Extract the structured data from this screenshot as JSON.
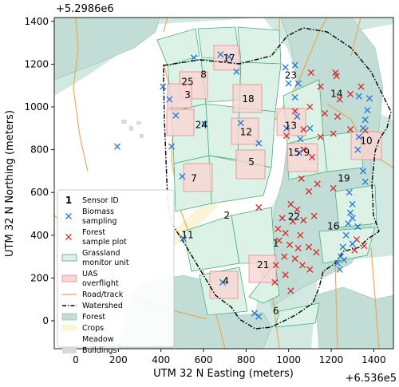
{
  "figure": {
    "offset_top": "+5.2986e6",
    "offset_right": "+6.536e5",
    "xlabel": "UTM 32 N Easting (meters)",
    "ylabel": "UTM 32 N Northing (meters)"
  },
  "axes": {
    "x_ticks": [
      0,
      200,
      400,
      600,
      800,
      1000,
      1200,
      1400
    ],
    "y_ticks": [
      0,
      200,
      400,
      600,
      800,
      1000,
      1200,
      1400
    ],
    "xlim": [
      -80,
      1480
    ],
    "ylim": [
      -90,
      1440
    ]
  },
  "colors": {
    "forest": "#c2ddd5",
    "forest_edge": "#94c3b4",
    "meadow": "#ffffff",
    "crops": "#fbf5d7",
    "buildings": "#d9d9d9",
    "background": "#d2e9e1",
    "grassland_fill": "#ddf2e6",
    "grassland_edge": "#49b07a",
    "uas_fill": "#f9d5d5",
    "uas_edge": "#e88a8a",
    "road": "#f0a24a",
    "watershed": "#000000",
    "biomass": "#1f77d8",
    "forest_plot": "#d62728"
  },
  "legend": {
    "sensor_symbol": "1",
    "items": [
      {
        "key": "sensor",
        "label": "Sensor ID"
      },
      {
        "key": "biomass",
        "label": "Biomass\nsampling"
      },
      {
        "key": "forest_plot",
        "label": "Forest\nsample plot"
      },
      {
        "key": "grassland",
        "label": "Grassland\nmonitor unit"
      },
      {
        "key": "uas",
        "label": "UAS\noverflight"
      },
      {
        "key": "road",
        "label": "Road/track"
      },
      {
        "key": "watershed",
        "label": "Watershed"
      },
      {
        "key": "forest",
        "label": "Forest"
      },
      {
        "key": "crops",
        "label": "Crops"
      },
      {
        "key": "meadow",
        "label": "Meadow"
      },
      {
        "key": "buildings",
        "label": "Buildings"
      }
    ]
  },
  "sensors": [
    {
      "id": "1",
      "x": 940,
      "y": 360
    },
    {
      "id": "2",
      "x": 710,
      "y": 490
    },
    {
      "id": "3",
      "x": 525,
      "y": 1055
    },
    {
      "id": "4",
      "x": 705,
      "y": 185
    },
    {
      "id": "5",
      "x": 825,
      "y": 740
    },
    {
      "id": "6",
      "x": 940,
      "y": 45
    },
    {
      "id": "7",
      "x": 555,
      "y": 665
    },
    {
      "id": "8",
      "x": 600,
      "y": 1150
    },
    {
      "id": "9",
      "x": 1085,
      "y": 785
    },
    {
      "id": "10",
      "x": 1365,
      "y": 840
    },
    {
      "id": "11",
      "x": 525,
      "y": 400
    },
    {
      "id": "12",
      "x": 800,
      "y": 880
    },
    {
      "id": "13",
      "x": 1010,
      "y": 910
    },
    {
      "id": "14",
      "x": 1225,
      "y": 1060
    },
    {
      "id": "15",
      "x": 1025,
      "y": 785
    },
    {
      "id": "16",
      "x": 1210,
      "y": 440
    },
    {
      "id": "17",
      "x": 720,
      "y": 1225
    },
    {
      "id": "18",
      "x": 810,
      "y": 1035
    },
    {
      "id": "19",
      "x": 1260,
      "y": 665
    },
    {
      "id": "21",
      "x": 880,
      "y": 260
    },
    {
      "id": "22",
      "x": 1025,
      "y": 485
    },
    {
      "id": "23",
      "x": 1010,
      "y": 1145
    },
    {
      "id": "24",
      "x": 590,
      "y": 915
    },
    {
      "id": "25",
      "x": 525,
      "y": 1115
    }
  ],
  "biomass_points": [
    [
      195,
      815
    ],
    [
      410,
      1095
    ],
    [
      440,
      1035
    ],
    [
      470,
      960
    ],
    [
      450,
      815
    ],
    [
      500,
      675
    ],
    [
      505,
      385
    ],
    [
      555,
      1230
    ],
    [
      680,
      1245
    ],
    [
      720,
      1235
    ],
    [
      755,
      1165
    ],
    [
      775,
      925
    ],
    [
      860,
      830
    ],
    [
      605,
      920
    ],
    [
      690,
      180
    ],
    [
      840,
      35
    ],
    [
      860,
      20
    ],
    [
      985,
      1185
    ],
    [
      1030,
      1195
    ],
    [
      1000,
      1110
    ],
    [
      1045,
      1110
    ],
    [
      1030,
      1045
    ],
    [
      1040,
      955
    ],
    [
      990,
      900
    ],
    [
      1055,
      850
    ],
    [
      1100,
      900
    ],
    [
      1050,
      785
    ],
    [
      1330,
      1050
    ],
    [
      1380,
      1040
    ],
    [
      1370,
      985
    ],
    [
      1360,
      940
    ],
    [
      1350,
      900
    ],
    [
      1330,
      860
    ],
    [
      1325,
      800
    ],
    [
      1350,
      700
    ],
    [
      1360,
      650
    ],
    [
      1285,
      600
    ],
    [
      1300,
      545
    ],
    [
      1290,
      505
    ],
    [
      1300,
      480
    ],
    [
      1280,
      455
    ],
    [
      1270,
      400
    ],
    [
      1255,
      345
    ],
    [
      1245,
      300
    ],
    [
      1230,
      270
    ],
    [
      1260,
      285
    ],
    [
      1240,
      240
    ],
    [
      1325,
      440
    ],
    [
      1300,
      360
    ]
  ],
  "forest_points": [
    [
      1105,
      1160
    ],
    [
      1150,
      1095
    ],
    [
      1220,
      1160
    ],
    [
      1225,
      1145
    ],
    [
      1240,
      1035
    ],
    [
      1290,
      1060
    ],
    [
      1340,
      1095
    ],
    [
      1100,
      1000
    ],
    [
      1170,
      970
    ],
    [
      1230,
      955
    ],
    [
      1030,
      980
    ],
    [
      990,
      865
    ],
    [
      1070,
      895
    ],
    [
      1150,
      860
    ],
    [
      1210,
      875
    ],
    [
      1290,
      895
    ],
    [
      1360,
      890
    ],
    [
      1070,
      800
    ],
    [
      1110,
      765
    ],
    [
      1060,
      665
    ],
    [
      1135,
      640
    ],
    [
      1210,
      620
    ],
    [
      1095,
      605
    ],
    [
      1010,
      545
    ],
    [
      1040,
      520
    ],
    [
      970,
      480
    ],
    [
      1020,
      465
    ],
    [
      1070,
      470
    ],
    [
      1120,
      490
    ],
    [
      860,
      530
    ],
    [
      950,
      430
    ],
    [
      985,
      410
    ],
    [
      1055,
      400
    ],
    [
      955,
      375
    ],
    [
      1005,
      355
    ],
    [
      1045,
      340
    ],
    [
      1095,
      345
    ],
    [
      1130,
      320
    ],
    [
      980,
      300
    ],
    [
      1030,
      290
    ],
    [
      1065,
      260
    ],
    [
      1100,
      240
    ],
    [
      940,
      260
    ],
    [
      985,
      215
    ],
    [
      935,
      180
    ],
    [
      1010,
      140
    ],
    [
      1320,
      380
    ],
    [
      1355,
      350
    ],
    [
      1310,
      330
    ]
  ]
}
